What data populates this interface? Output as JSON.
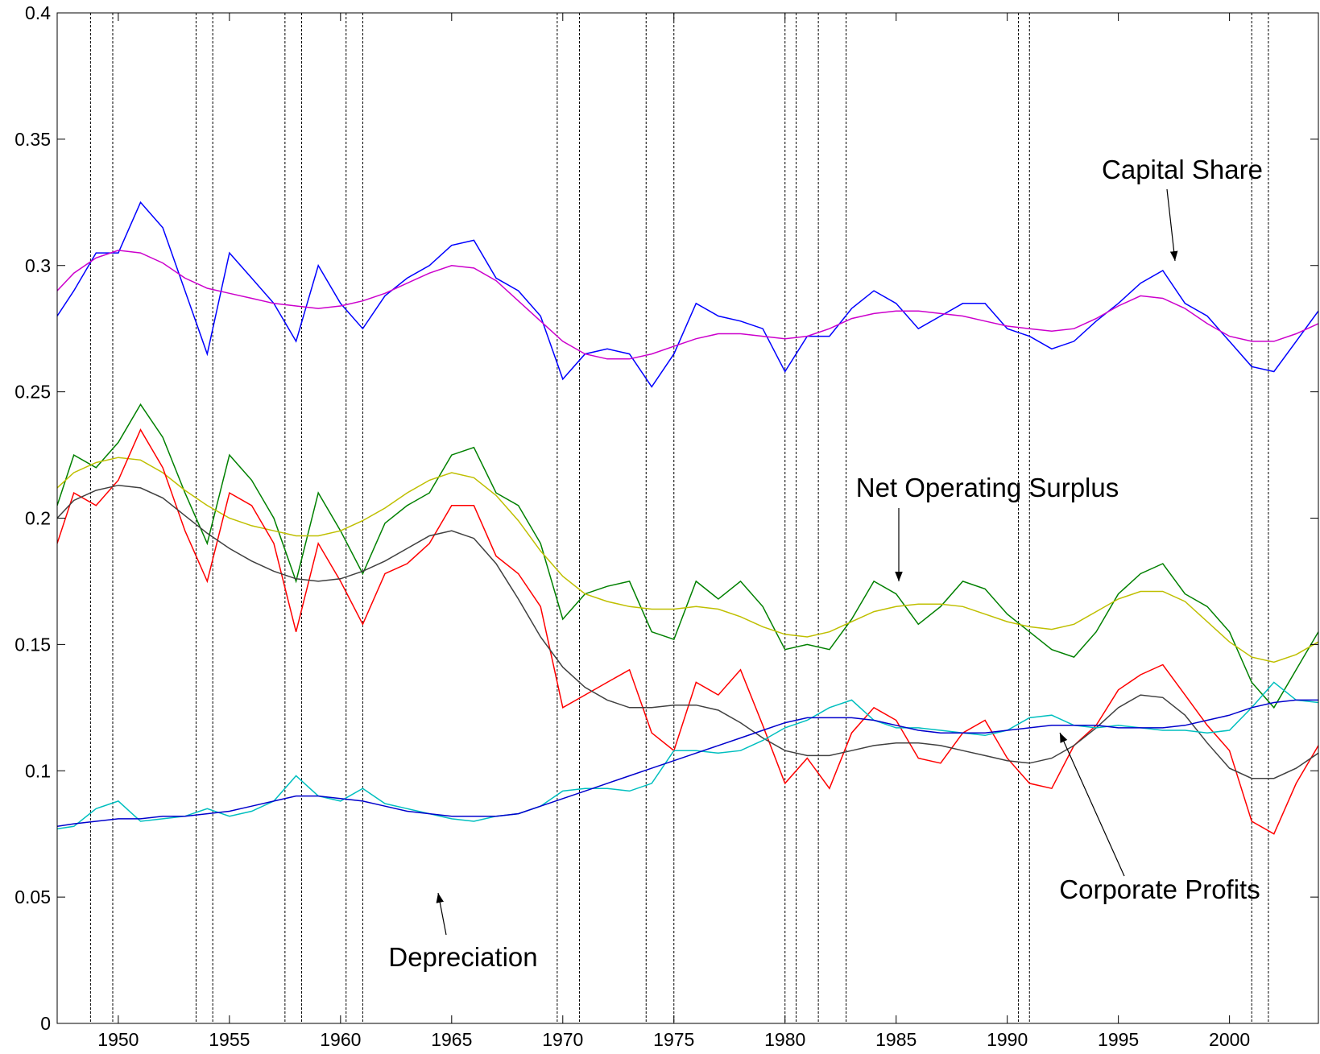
{
  "chart_data": {
    "type": "line",
    "x": [
      1947.25,
      1948,
      1949,
      1950,
      1951,
      1952,
      1953,
      1954,
      1955,
      1956,
      1957,
      1958,
      1959,
      1960,
      1961,
      1962,
      1963,
      1964,
      1965,
      1966,
      1967,
      1968,
      1969,
      1970,
      1971,
      1972,
      1973,
      1974,
      1975,
      1976,
      1977,
      1978,
      1979,
      1980,
      1981,
      1982,
      1983,
      1984,
      1985,
      1986,
      1987,
      1988,
      1989,
      1990,
      1991,
      1992,
      1993,
      1994,
      1995,
      1996,
      1997,
      1998,
      1999,
      2000,
      2001,
      2002,
      2003,
      2004
    ],
    "series": [
      {
        "name": "Capital Share",
        "color": "#0000ff",
        "values": [
          0.28,
          0.29,
          0.305,
          0.305,
          0.325,
          0.315,
          0.29,
          0.265,
          0.305,
          0.295,
          0.285,
          0.27,
          0.3,
          0.285,
          0.275,
          0.288,
          0.295,
          0.3,
          0.308,
          0.31,
          0.295,
          0.29,
          0.28,
          0.255,
          0.265,
          0.267,
          0.265,
          0.252,
          0.265,
          0.285,
          0.28,
          0.278,
          0.275,
          0.258,
          0.272,
          0.272,
          0.283,
          0.29,
          0.285,
          0.275,
          0.28,
          0.285,
          0.285,
          0.275,
          0.272,
          0.267,
          0.27,
          0.278,
          0.285,
          0.293,
          0.298,
          0.285,
          0.28,
          0.27,
          0.26,
          0.258,
          0.27,
          0.282
        ]
      },
      {
        "color": "#cc00cc",
        "values": [
          0.29,
          0.297,
          0.303,
          0.306,
          0.305,
          0.301,
          0.295,
          0.291,
          0.289,
          0.287,
          0.285,
          0.284,
          0.283,
          0.284,
          0.286,
          0.289,
          0.293,
          0.297,
          0.3,
          0.299,
          0.294,
          0.286,
          0.278,
          0.27,
          0.265,
          0.263,
          0.263,
          0.265,
          0.268,
          0.271,
          0.273,
          0.273,
          0.272,
          0.271,
          0.272,
          0.275,
          0.279,
          0.281,
          0.282,
          0.282,
          0.281,
          0.28,
          0.278,
          0.276,
          0.275,
          0.274,
          0.275,
          0.279,
          0.284,
          0.288,
          0.287,
          0.283,
          0.277,
          0.272,
          0.27,
          0.27,
          0.273,
          0.277
        ]
      },
      {
        "name": "Net Operating Surplus",
        "color": "#008000",
        "values": [
          0.205,
          0.225,
          0.22,
          0.23,
          0.245,
          0.232,
          0.21,
          0.19,
          0.225,
          0.215,
          0.2,
          0.175,
          0.21,
          0.195,
          0.178,
          0.198,
          0.205,
          0.21,
          0.225,
          0.228,
          0.21,
          0.205,
          0.19,
          0.16,
          0.17,
          0.173,
          0.175,
          0.155,
          0.152,
          0.175,
          0.168,
          0.175,
          0.165,
          0.148,
          0.15,
          0.148,
          0.16,
          0.175,
          0.17,
          0.158,
          0.165,
          0.175,
          0.172,
          0.162,
          0.155,
          0.148,
          0.145,
          0.155,
          0.17,
          0.178,
          0.182,
          0.17,
          0.165,
          0.155,
          0.135,
          0.125,
          0.14,
          0.155
        ]
      },
      {
        "color": "#bfbf00",
        "values": [
          0.212,
          0.218,
          0.222,
          0.224,
          0.223,
          0.218,
          0.211,
          0.205,
          0.2,
          0.197,
          0.195,
          0.193,
          0.193,
          0.195,
          0.199,
          0.204,
          0.21,
          0.215,
          0.218,
          0.216,
          0.209,
          0.199,
          0.187,
          0.177,
          0.17,
          0.167,
          0.165,
          0.164,
          0.164,
          0.165,
          0.164,
          0.161,
          0.157,
          0.154,
          0.153,
          0.155,
          0.159,
          0.163,
          0.165,
          0.166,
          0.166,
          0.165,
          0.162,
          0.159,
          0.157,
          0.156,
          0.158,
          0.163,
          0.168,
          0.171,
          0.171,
          0.167,
          0.159,
          0.151,
          0.145,
          0.143,
          0.146,
          0.151
        ]
      },
      {
        "name": "Corporate Profits",
        "color": "#ff0000",
        "values": [
          0.19,
          0.21,
          0.205,
          0.215,
          0.235,
          0.22,
          0.195,
          0.175,
          0.21,
          0.205,
          0.19,
          0.155,
          0.19,
          0.175,
          0.158,
          0.178,
          0.182,
          0.19,
          0.205,
          0.205,
          0.185,
          0.178,
          0.165,
          0.125,
          0.13,
          0.135,
          0.14,
          0.115,
          0.108,
          0.135,
          0.13,
          0.14,
          0.118,
          0.095,
          0.105,
          0.093,
          0.115,
          0.125,
          0.12,
          0.105,
          0.103,
          0.115,
          0.12,
          0.105,
          0.095,
          0.093,
          0.11,
          0.118,
          0.132,
          0.138,
          0.142,
          0.13,
          0.118,
          0.108,
          0.08,
          0.075,
          0.095,
          0.11
        ]
      },
      {
        "color": "#404040",
        "values": [
          0.2,
          0.207,
          0.211,
          0.213,
          0.212,
          0.208,
          0.201,
          0.194,
          0.188,
          0.183,
          0.179,
          0.176,
          0.175,
          0.176,
          0.179,
          0.183,
          0.188,
          0.193,
          0.195,
          0.192,
          0.182,
          0.168,
          0.153,
          0.141,
          0.133,
          0.128,
          0.125,
          0.125,
          0.126,
          0.126,
          0.124,
          0.119,
          0.113,
          0.108,
          0.106,
          0.106,
          0.108,
          0.11,
          0.111,
          0.111,
          0.11,
          0.108,
          0.106,
          0.104,
          0.103,
          0.105,
          0.11,
          0.117,
          0.125,
          0.13,
          0.129,
          0.122,
          0.111,
          0.101,
          0.097,
          0.097,
          0.101,
          0.107
        ]
      },
      {
        "name": "Depreciation",
        "color": "#00bfbf",
        "values": [
          0.077,
          0.078,
          0.085,
          0.088,
          0.08,
          0.081,
          0.082,
          0.085,
          0.082,
          0.084,
          0.088,
          0.098,
          0.09,
          0.088,
          0.093,
          0.087,
          0.085,
          0.083,
          0.081,
          0.08,
          0.082,
          0.083,
          0.086,
          0.092,
          0.093,
          0.093,
          0.092,
          0.095,
          0.108,
          0.108,
          0.107,
          0.108,
          0.112,
          0.117,
          0.12,
          0.125,
          0.128,
          0.12,
          0.117,
          0.117,
          0.116,
          0.115,
          0.114,
          0.116,
          0.121,
          0.122,
          0.118,
          0.117,
          0.118,
          0.117,
          0.116,
          0.116,
          0.115,
          0.116,
          0.125,
          0.135,
          0.128,
          0.127
        ]
      },
      {
        "color": "#0000cc",
        "values": [
          0.078,
          0.079,
          0.08,
          0.081,
          0.081,
          0.082,
          0.082,
          0.083,
          0.084,
          0.086,
          0.088,
          0.09,
          0.09,
          0.089,
          0.088,
          0.086,
          0.084,
          0.083,
          0.082,
          0.082,
          0.082,
          0.083,
          0.086,
          0.089,
          0.092,
          0.095,
          0.098,
          0.101,
          0.104,
          0.107,
          0.11,
          0.113,
          0.116,
          0.119,
          0.121,
          0.121,
          0.121,
          0.12,
          0.118,
          0.116,
          0.115,
          0.115,
          0.115,
          0.116,
          0.117,
          0.118,
          0.118,
          0.118,
          0.117,
          0.117,
          0.117,
          0.118,
          0.12,
          0.122,
          0.125,
          0.127,
          0.128,
          0.128
        ]
      }
    ],
    "recessions": [
      [
        1948.75,
        1949.75
      ],
      [
        1953.5,
        1954.25
      ],
      [
        1957.5,
        1958.25
      ],
      [
        1960.25,
        1961.0
      ],
      [
        1969.75,
        1970.75
      ],
      [
        1973.75,
        1975.0
      ],
      [
        1980.0,
        1980.5
      ],
      [
        1981.5,
        1982.75
      ],
      [
        1990.5,
        1991.0
      ],
      [
        2001.0,
        2001.75
      ]
    ],
    "xlim": [
      1947.25,
      2004
    ],
    "xticks": [
      1950,
      1955,
      1960,
      1965,
      1970,
      1975,
      1980,
      1985,
      1990,
      1995,
      2000
    ],
    "ylim": [
      0,
      0.4
    ],
    "yticks": [
      0,
      0.05,
      0.1,
      0.15,
      0.2,
      0.25,
      0.3,
      0.35,
      0.4
    ]
  }
}
